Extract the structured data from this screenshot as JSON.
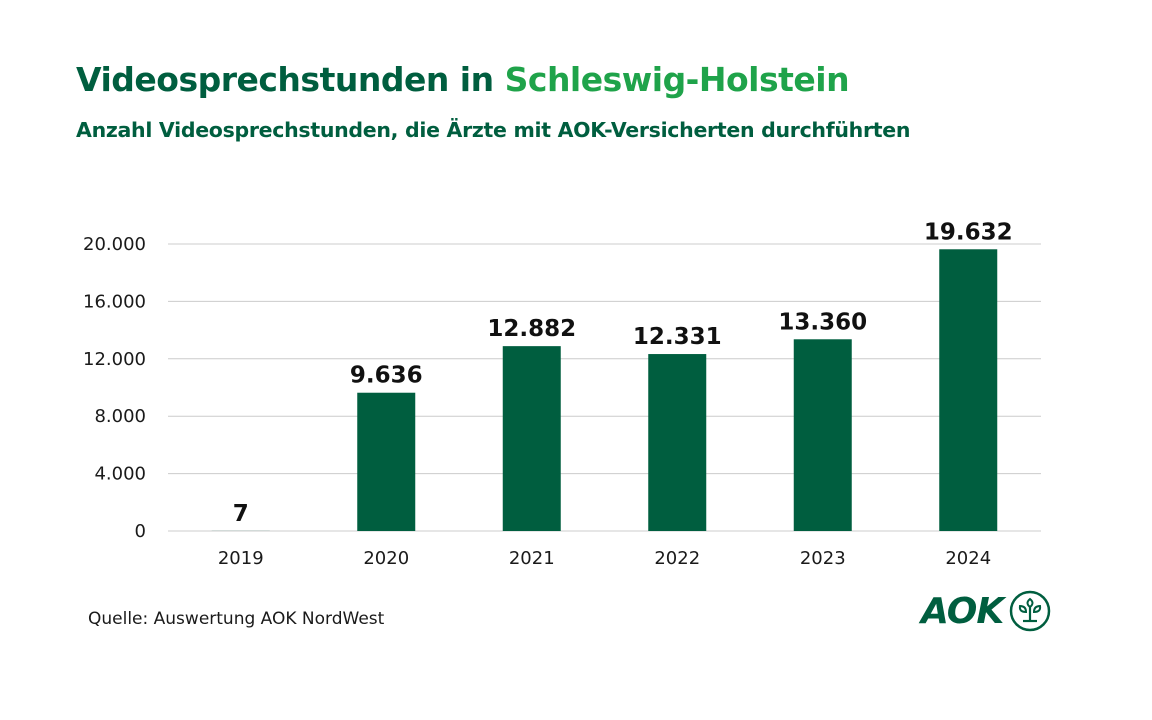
{
  "title": {
    "part1": "Videosprechstunden in ",
    "part2": "Schleswig-Holstein"
  },
  "subtitle": "Anzahl Videosprechstunden, die Ärzte mit AOK-Versicherten durchführten",
  "source": "Quelle: Auswertung AOK NordWest",
  "logo": {
    "text": "AOK",
    "icon": "aok-tree-circle-icon"
  },
  "colors": {
    "bar": "#005e3f",
    "title": "#005e3f",
    "accent": "#1fa34a",
    "grid": "#cccccc"
  },
  "chart_data": {
    "type": "bar",
    "title": "Videosprechstunden in Schleswig-Holstein",
    "subtitle": "Anzahl Videosprechstunden, die Ärzte mit AOK-Versicherten durchführten",
    "categories": [
      "2019",
      "2020",
      "2021",
      "2022",
      "2023",
      "2024"
    ],
    "values": [
      7,
      9636,
      12882,
      12331,
      13360,
      19632
    ],
    "data_labels": [
      "7",
      "9.636",
      "12.882",
      "12.331",
      "13.360",
      "19.632"
    ],
    "xlabel": "",
    "ylabel": "",
    "ylim": [
      0,
      20000
    ],
    "yticks": [
      0,
      4000,
      8000,
      12000,
      16000,
      20000
    ],
    "ytick_labels": [
      "0",
      "4.000",
      "8.000",
      "12.000",
      "16.000",
      "20.000"
    ],
    "grid": true,
    "legend": "none"
  }
}
